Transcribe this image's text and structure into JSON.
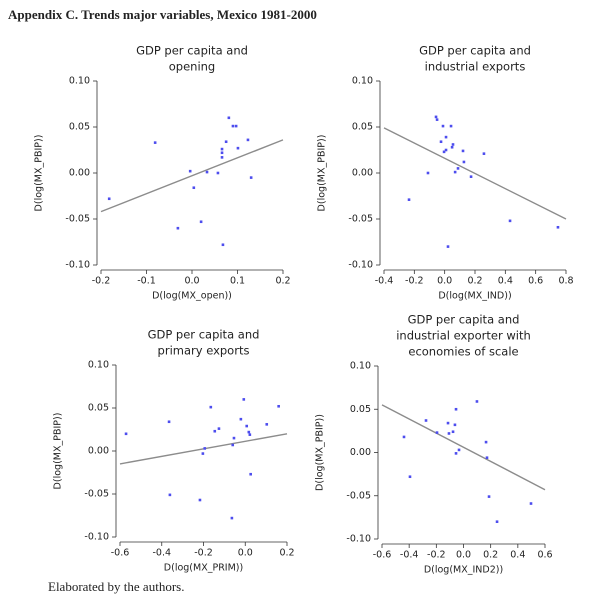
{
  "title": "Appendix C.  Trends major variables, Mexico 1981-2000",
  "note": "Elaborated by the authors.",
  "chart_data": [
    {
      "type": "scatter",
      "title": [
        "GDP per capita and",
        "opening"
      ],
      "x_label": "D(log(MX_open))",
      "y_label": "D(log(MX_PBIP))",
      "color": "#4d4dee",
      "trend_color": "#8c8c8c",
      "x": [
        -0.182,
        -0.081,
        -0.004,
        -0.031,
        0.004,
        0.02,
        0.033,
        0.057,
        0.066,
        0.066,
        0.066,
        0.068,
        0.081,
        0.09,
        0.097,
        0.101,
        0.123,
        0.13,
        0.075
      ],
      "values": [
        -0.028,
        0.033,
        0.002,
        -0.06,
        -0.016,
        -0.053,
        0.001,
        0,
        0.022,
        0.017,
        0.026,
        -0.078,
        0.06,
        0.051,
        0.051,
        0.027,
        0.036,
        -0.005,
        0.034
      ],
      "trend_line": {
        "x": [
          -0.2,
          0.2
        ],
        "y": [
          -0.042,
          0.036
        ]
      },
      "xlim": [
        -0.2,
        0.2
      ],
      "ylim": [
        -0.1,
        0.1
      ],
      "xticks": [
        -0.2,
        -0.1,
        {
          "value": 0,
          "label": "0.0"
        },
        0.1,
        0.2
      ],
      "yticks": [
        {
          "value": -0.1,
          "label": "-0.10"
        },
        -0.05,
        {
          "value": 0,
          "label": "0.00"
        },
        0.05,
        {
          "value": 0.1,
          "label": "0.10"
        }
      ]
    },
    {
      "type": "scatter",
      "title": [
        "GDP per capita and",
        "industrial exports"
      ],
      "x_label": "D(log(MX_IND))",
      "y_label": "D(log(MX_PBIP))",
      "color": "#4d4dee",
      "trend_color": "#8c8c8c",
      "x": [
        -0.235,
        -0.11,
        -0.057,
        -0.05,
        -0.024,
        -0.011,
        -0.004,
        0.009,
        0.009,
        0.022,
        0.042,
        0.049,
        0.069,
        0.088,
        0.121,
        0.127,
        0.174,
        0.259,
        0.431,
        0.747,
        0.055
      ],
      "values": [
        -0.029,
        0,
        0.061,
        0.058,
        0.034,
        0.051,
        0.023,
        0.025,
        0.039,
        -0.08,
        0.051,
        0.028,
        0.001,
        0.005,
        0.024,
        0.012,
        -0.004,
        0.021,
        -0.052,
        -0.059,
        0.031
      ],
      "trend_line": {
        "x": [
          -0.4,
          0.8
        ],
        "y": [
          0.049,
          -0.05
        ]
      },
      "xlim": [
        -0.4,
        0.8
      ],
      "ylim": [
        -0.1,
        0.1
      ],
      "xticks": [
        -0.4,
        -0.2,
        {
          "value": 0,
          "label": "0.0"
        },
        0.2,
        0.4,
        0.6,
        0.8
      ],
      "yticks": [
        {
          "value": -0.1,
          "label": "-0.10"
        },
        -0.05,
        {
          "value": 0,
          "label": "0.00"
        },
        0.05,
        {
          "value": 0.1,
          "label": "0.10"
        }
      ]
    },
    {
      "type": "scatter",
      "title": [
        "GDP per capita and",
        "primary exports"
      ],
      "x_label": "D(log(MX_PRIM))",
      "y_label": "D(log(MX_PBIP))",
      "color": "#4d4dee",
      "trend_color": "#8c8c8c",
      "x": [
        -0.571,
        -0.365,
        -0.361,
        -0.217,
        -0.203,
        -0.194,
        -0.165,
        -0.146,
        -0.126,
        -0.064,
        -0.06,
        -0.021,
        -0.007,
        0.007,
        0.017,
        0.022,
        0.026,
        0.103,
        0.16,
        -0.054
      ],
      "values": [
        0.02,
        0.034,
        -0.051,
        -0.057,
        -0.003,
        0.003,
        0.051,
        0.023,
        0.026,
        -0.078,
        0.007,
        0.037,
        0.06,
        0.029,
        0.022,
        0.019,
        -0.027,
        0.031,
        0.052,
        0.015
      ],
      "trend_line": {
        "x": [
          -0.6,
          0.2
        ],
        "y": [
          -0.015,
          0.02
        ]
      },
      "xlim": [
        -0.6,
        0.2
      ],
      "ylim": [
        -0.1,
        0.1
      ],
      "xticks": [
        -0.6,
        -0.4,
        -0.2,
        {
          "value": 0,
          "label": "0.0"
        },
        0.2
      ],
      "yticks": [
        {
          "value": -0.1,
          "label": "-0.10"
        },
        -0.05,
        {
          "value": 0,
          "label": "0.00"
        },
        0.05,
        {
          "value": 0.1,
          "label": "0.10"
        }
      ]
    },
    {
      "type": "scatter",
      "title": [
        "GDP per capita and",
        "industrial exporter with",
        "economies of scale"
      ],
      "x_label": "D(log(MX_IND2))",
      "y_label": "D(log(MX_PBIP))",
      "color": "#4d4dee",
      "trend_color": "#8c8c8c",
      "x": [
        -0.438,
        -0.394,
        -0.276,
        -0.195,
        -0.114,
        -0.107,
        -0.077,
        -0.055,
        -0.063,
        -0.055,
        -0.033,
        0.099,
        0.166,
        0.173,
        0.188,
        0.247,
        0.497
      ],
      "values": [
        0.018,
        -0.028,
        0.037,
        0.023,
        0.034,
        0.022,
        0.024,
        0.05,
        0.032,
        -0.001,
        0.003,
        0.059,
        0.012,
        -0.006,
        -0.051,
        -0.08,
        -0.059
      ],
      "trend_line": {
        "x": [
          -0.6,
          0.6
        ],
        "y": [
          0.055,
          -0.043
        ]
      },
      "xlim": [
        -0.6,
        0.6
      ],
      "ylim": [
        -0.1,
        0.1
      ],
      "xticks": [
        -0.6,
        -0.4,
        -0.2,
        {
          "value": 0,
          "label": "0.0"
        },
        0.2,
        0.4,
        0.6
      ],
      "yticks": [
        {
          "value": -0.1,
          "label": "-0.10"
        },
        -0.05,
        {
          "value": 0,
          "label": "0.00"
        },
        0.05,
        {
          "value": 0.1,
          "label": "0.10"
        }
      ]
    }
  ]
}
